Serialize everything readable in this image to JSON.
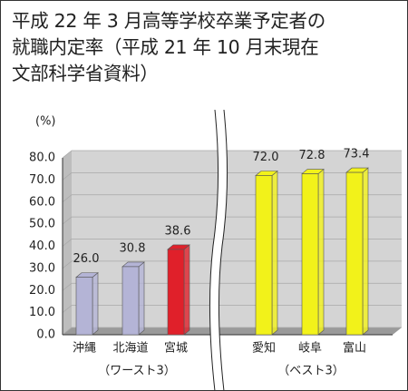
{
  "chart_data": {
    "type": "bar3d",
    "title": "平成 22 年 3 月高等学校卒業予定者の\n就職内定率（平成 21 年 10 月末現在\n文部科学省資料）",
    "y_label": "(%)",
    "categories": [
      "沖縄",
      "北海道",
      "宮城",
      "愛知",
      "岐阜",
      "富山"
    ],
    "values": [
      26.0,
      30.8,
      38.6,
      72.0,
      72.8,
      73.4
    ],
    "value_labels": [
      "26.0",
      "30.8",
      "38.6",
      "72.0",
      "72.8",
      "73.4"
    ],
    "colors": [
      "#b4b4d6",
      "#b4b4d6",
      "#e0202a",
      "#f2f21a",
      "#f2f21a",
      "#f2f21a"
    ],
    "annotations": [
      "（ワースト3）",
      "（ベスト3）"
    ],
    "ylim": [
      0,
      80
    ],
    "yticks": [
      {
        "value": 0,
        "label": "0.0"
      },
      {
        "value": 10,
        "label": "10.0"
      },
      {
        "value": 20,
        "label": "20.0"
      },
      {
        "value": 30,
        "label": "30.0"
      },
      {
        "value": 40,
        "label": "40.0"
      },
      {
        "value": 50,
        "label": "50.0"
      },
      {
        "value": 60,
        "label": "60.0"
      },
      {
        "value": 70,
        "label": "70.0"
      },
      {
        "value": 80,
        "label": "80.0"
      }
    ],
    "grid": true
  }
}
